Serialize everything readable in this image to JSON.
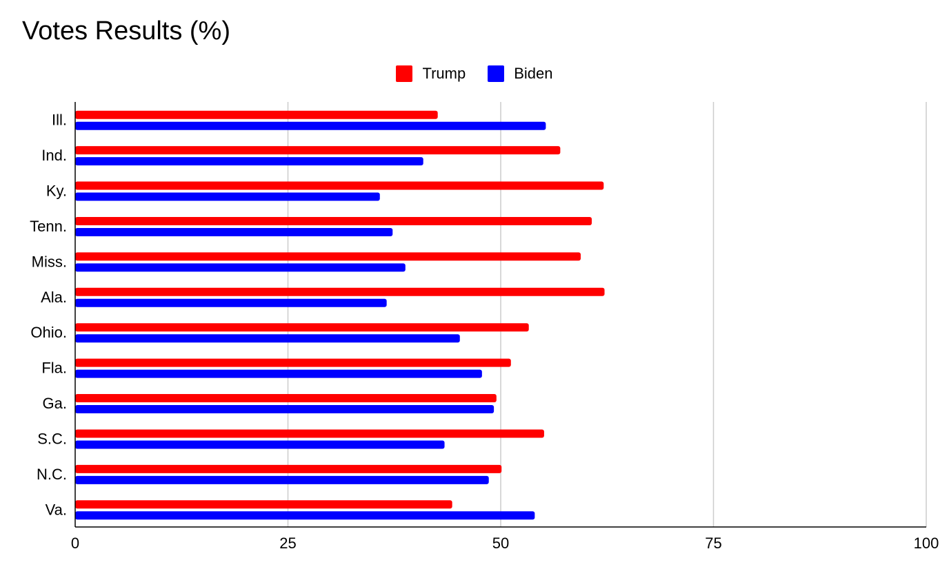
{
  "chart_data": {
    "type": "bar",
    "orientation": "horizontal",
    "title": "Votes Results (%)",
    "xlabel": "",
    "ylabel": "",
    "xlim": [
      0,
      100
    ],
    "xticks": [
      "0",
      "25",
      "50",
      "75",
      "100"
    ],
    "grid": true,
    "legend_position": "top-center",
    "categories": [
      "Ill.",
      "Ind.",
      "Ky.",
      "Tenn.",
      "Miss.",
      "Ala.",
      "Ohio.",
      "Fla.",
      "Ga.",
      "S.C.",
      "N.C.",
      "Va."
    ],
    "series": [
      {
        "name": "Trump",
        "color": "#ff0000",
        "values": [
          42.6,
          57.0,
          62.1,
          60.7,
          59.4,
          62.2,
          53.3,
          51.2,
          49.5,
          55.1,
          50.1,
          44.3
        ]
      },
      {
        "name": "Biden",
        "color": "#0000ff",
        "values": [
          55.3,
          40.9,
          35.8,
          37.3,
          38.8,
          36.6,
          45.2,
          47.8,
          49.2,
          43.4,
          48.6,
          54.0
        ]
      }
    ]
  }
}
